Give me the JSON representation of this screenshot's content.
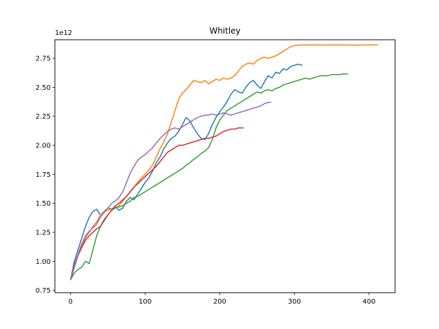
{
  "chart_data": {
    "type": "line",
    "title": "Whitley",
    "xlabel": "",
    "ylabel": "",
    "offset_text": "1e12",
    "xlim": [
      -21,
      435
    ],
    "ylim": [
      0.73,
      2.91
    ],
    "xticks": [
      0,
      100,
      200,
      300,
      400
    ],
    "xtick_labels": [
      "0",
      "100",
      "200",
      "300",
      "400"
    ],
    "yticks": [
      0.75,
      1.0,
      1.25,
      1.5,
      1.75,
      2.0,
      2.25,
      2.5,
      2.75
    ],
    "ytick_labels": [
      "0.75",
      "1.00",
      "1.25",
      "1.50",
      "1.75",
      "2.00",
      "2.25",
      "2.50",
      "2.75"
    ],
    "grid": false,
    "legend": "none",
    "series": [
      {
        "color": "#1f77b4",
        "points": [
          [
            0,
            0.84
          ],
          [
            5,
            1.0
          ],
          [
            10,
            1.1
          ],
          [
            15,
            1.2
          ],
          [
            20,
            1.3
          ],
          [
            25,
            1.38
          ],
          [
            30,
            1.43
          ],
          [
            35,
            1.45
          ],
          [
            40,
            1.4
          ],
          [
            45,
            1.43
          ],
          [
            50,
            1.46
          ],
          [
            55,
            1.45
          ],
          [
            60,
            1.47
          ],
          [
            65,
            1.44
          ],
          [
            70,
            1.46
          ],
          [
            75,
            1.52
          ],
          [
            80,
            1.55
          ],
          [
            85,
            1.53
          ],
          [
            90,
            1.58
          ],
          [
            95,
            1.63
          ],
          [
            100,
            1.68
          ],
          [
            105,
            1.72
          ],
          [
            110,
            1.78
          ],
          [
            115,
            1.85
          ],
          [
            120,
            1.9
          ],
          [
            125,
            1.97
          ],
          [
            130,
            2.02
          ],
          [
            135,
            2.06
          ],
          [
            140,
            2.08
          ],
          [
            145,
            2.12
          ],
          [
            150,
            2.18
          ],
          [
            155,
            2.24
          ],
          [
            160,
            2.21
          ],
          [
            165,
            2.15
          ],
          [
            170,
            2.1
          ],
          [
            175,
            2.06
          ],
          [
            180,
            2.05
          ],
          [
            185,
            2.1
          ],
          [
            190,
            2.18
          ],
          [
            195,
            2.24
          ],
          [
            200,
            2.29
          ],
          [
            205,
            2.33
          ],
          [
            210,
            2.38
          ],
          [
            215,
            2.44
          ],
          [
            220,
            2.48
          ],
          [
            225,
            2.46
          ],
          [
            230,
            2.45
          ],
          [
            235,
            2.5
          ],
          [
            240,
            2.54
          ],
          [
            245,
            2.56
          ],
          [
            250,
            2.52
          ],
          [
            255,
            2.49
          ],
          [
            260,
            2.55
          ],
          [
            265,
            2.6
          ],
          [
            270,
            2.58
          ],
          [
            275,
            2.63
          ],
          [
            280,
            2.62
          ],
          [
            285,
            2.66
          ],
          [
            290,
            2.65
          ],
          [
            295,
            2.68
          ],
          [
            300,
            2.69
          ],
          [
            305,
            2.7
          ],
          [
            311,
            2.69
          ]
        ]
      },
      {
        "color": "#ff7f0e",
        "points": [
          [
            0,
            0.84
          ],
          [
            5,
            0.96
          ],
          [
            10,
            1.06
          ],
          [
            15,
            1.13
          ],
          [
            20,
            1.2
          ],
          [
            25,
            1.25
          ],
          [
            30,
            1.3
          ],
          [
            35,
            1.34
          ],
          [
            40,
            1.4
          ],
          [
            45,
            1.43
          ],
          [
            50,
            1.44
          ],
          [
            55,
            1.45
          ],
          [
            60,
            1.46
          ],
          [
            65,
            1.48
          ],
          [
            70,
            1.52
          ],
          [
            75,
            1.56
          ],
          [
            80,
            1.6
          ],
          [
            85,
            1.64
          ],
          [
            90,
            1.68
          ],
          [
            95,
            1.72
          ],
          [
            100,
            1.75
          ],
          [
            105,
            1.79
          ],
          [
            110,
            1.83
          ],
          [
            115,
            1.9
          ],
          [
            120,
            1.97
          ],
          [
            125,
            2.03
          ],
          [
            130,
            2.1
          ],
          [
            135,
            2.2
          ],
          [
            140,
            2.3
          ],
          [
            145,
            2.4
          ],
          [
            150,
            2.45
          ],
          [
            155,
            2.48
          ],
          [
            160,
            2.52
          ],
          [
            165,
            2.56
          ],
          [
            170,
            2.55
          ],
          [
            175,
            2.54
          ],
          [
            180,
            2.56
          ],
          [
            185,
            2.53
          ],
          [
            190,
            2.55
          ],
          [
            195,
            2.57
          ],
          [
            200,
            2.56
          ],
          [
            205,
            2.58
          ],
          [
            210,
            2.57
          ],
          [
            215,
            2.58
          ],
          [
            220,
            2.6
          ],
          [
            225,
            2.64
          ],
          [
            230,
            2.68
          ],
          [
            235,
            2.7
          ],
          [
            240,
            2.71
          ],
          [
            245,
            2.7
          ],
          [
            250,
            2.73
          ],
          [
            255,
            2.75
          ],
          [
            260,
            2.76
          ],
          [
            265,
            2.75
          ],
          [
            270,
            2.76
          ],
          [
            275,
            2.77
          ],
          [
            280,
            2.79
          ],
          [
            285,
            2.81
          ],
          [
            290,
            2.83
          ],
          [
            295,
            2.85
          ],
          [
            300,
            2.86
          ],
          [
            310,
            2.865
          ],
          [
            320,
            2.866
          ],
          [
            340,
            2.865
          ],
          [
            360,
            2.866
          ],
          [
            380,
            2.864
          ],
          [
            400,
            2.866
          ],
          [
            412,
            2.866
          ]
        ]
      },
      {
        "color": "#2ca02c",
        "points": [
          [
            0,
            0.84
          ],
          [
            5,
            0.9
          ],
          [
            10,
            0.93
          ],
          [
            15,
            0.95
          ],
          [
            20,
            1.0
          ],
          [
            25,
            0.98
          ],
          [
            30,
            1.1
          ],
          [
            35,
            1.22
          ],
          [
            40,
            1.3
          ],
          [
            45,
            1.36
          ],
          [
            50,
            1.4
          ],
          [
            55,
            1.44
          ],
          [
            60,
            1.46
          ],
          [
            65,
            1.47
          ],
          [
            70,
            1.48
          ],
          [
            75,
            1.5
          ],
          [
            80,
            1.52
          ],
          [
            85,
            1.55
          ],
          [
            90,
            1.56
          ],
          [
            95,
            1.58
          ],
          [
            100,
            1.6
          ],
          [
            105,
            1.62
          ],
          [
            110,
            1.64
          ],
          [
            115,
            1.66
          ],
          [
            120,
            1.68
          ],
          [
            125,
            1.7
          ],
          [
            130,
            1.72
          ],
          [
            135,
            1.74
          ],
          [
            140,
            1.76
          ],
          [
            145,
            1.78
          ],
          [
            150,
            1.8
          ],
          [
            155,
            1.83
          ],
          [
            160,
            1.85
          ],
          [
            165,
            1.88
          ],
          [
            170,
            1.9
          ],
          [
            175,
            1.93
          ],
          [
            180,
            1.95
          ],
          [
            185,
            1.98
          ],
          [
            190,
            2.05
          ],
          [
            195,
            2.15
          ],
          [
            200,
            2.22
          ],
          [
            205,
            2.26
          ],
          [
            210,
            2.3
          ],
          [
            215,
            2.32
          ],
          [
            220,
            2.34
          ],
          [
            225,
            2.36
          ],
          [
            230,
            2.38
          ],
          [
            235,
            2.4
          ],
          [
            240,
            2.42
          ],
          [
            245,
            2.44
          ],
          [
            250,
            2.46
          ],
          [
            255,
            2.45
          ],
          [
            260,
            2.47
          ],
          [
            265,
            2.48
          ],
          [
            270,
            2.47
          ],
          [
            275,
            2.49
          ],
          [
            280,
            2.5
          ],
          [
            285,
            2.52
          ],
          [
            290,
            2.53
          ],
          [
            295,
            2.54
          ],
          [
            300,
            2.55
          ],
          [
            305,
            2.56
          ],
          [
            310,
            2.57
          ],
          [
            315,
            2.58
          ],
          [
            320,
            2.57
          ],
          [
            325,
            2.58
          ],
          [
            330,
            2.59
          ],
          [
            335,
            2.6
          ],
          [
            340,
            2.6
          ],
          [
            345,
            2.6
          ],
          [
            350,
            2.61
          ],
          [
            355,
            2.61
          ],
          [
            360,
            2.61
          ],
          [
            366,
            2.615
          ],
          [
            372,
            2.615
          ]
        ]
      },
      {
        "color": "#d62728",
        "points": [
          [
            0,
            0.84
          ],
          [
            5,
            0.95
          ],
          [
            10,
            1.05
          ],
          [
            15,
            1.12
          ],
          [
            20,
            1.18
          ],
          [
            25,
            1.22
          ],
          [
            30,
            1.25
          ],
          [
            35,
            1.28
          ],
          [
            40,
            1.3
          ],
          [
            45,
            1.35
          ],
          [
            50,
            1.4
          ],
          [
            55,
            1.44
          ],
          [
            60,
            1.48
          ],
          [
            65,
            1.5
          ],
          [
            70,
            1.53
          ],
          [
            75,
            1.56
          ],
          [
            80,
            1.6
          ],
          [
            85,
            1.64
          ],
          [
            90,
            1.67
          ],
          [
            95,
            1.7
          ],
          [
            100,
            1.73
          ],
          [
            105,
            1.76
          ],
          [
            110,
            1.79
          ],
          [
            115,
            1.82
          ],
          [
            120,
            1.86
          ],
          [
            125,
            1.9
          ],
          [
            130,
            1.94
          ],
          [
            135,
            1.96
          ],
          [
            140,
            1.98
          ],
          [
            145,
            2.0
          ],
          [
            150,
            2.0
          ],
          [
            155,
            2.01
          ],
          [
            160,
            2.02
          ],
          [
            165,
            2.03
          ],
          [
            170,
            2.04
          ],
          [
            175,
            2.05
          ],
          [
            180,
            2.06
          ],
          [
            185,
            2.06
          ],
          [
            190,
            2.07
          ],
          [
            195,
            2.08
          ],
          [
            200,
            2.1
          ],
          [
            205,
            2.12
          ],
          [
            210,
            2.13
          ],
          [
            215,
            2.14
          ],
          [
            220,
            2.14
          ],
          [
            225,
            2.15
          ],
          [
            232,
            2.15
          ]
        ]
      },
      {
        "color": "#9467bd",
        "points": [
          [
            0,
            0.84
          ],
          [
            5,
            0.97
          ],
          [
            10,
            1.06
          ],
          [
            15,
            1.15
          ],
          [
            20,
            1.22
          ],
          [
            25,
            1.26
          ],
          [
            30,
            1.29
          ],
          [
            35,
            1.32
          ],
          [
            40,
            1.38
          ],
          [
            45,
            1.42
          ],
          [
            50,
            1.46
          ],
          [
            55,
            1.5
          ],
          [
            60,
            1.52
          ],
          [
            65,
            1.55
          ],
          [
            70,
            1.6
          ],
          [
            75,
            1.68
          ],
          [
            80,
            1.76
          ],
          [
            85,
            1.82
          ],
          [
            90,
            1.87
          ],
          [
            95,
            1.9
          ],
          [
            100,
            1.92
          ],
          [
            105,
            1.95
          ],
          [
            110,
            1.98
          ],
          [
            115,
            2.02
          ],
          [
            120,
            2.06
          ],
          [
            125,
            2.09
          ],
          [
            130,
            2.12
          ],
          [
            135,
            2.14
          ],
          [
            140,
            2.15
          ],
          [
            145,
            2.14
          ],
          [
            150,
            2.16
          ],
          [
            155,
            2.18
          ],
          [
            160,
            2.2
          ],
          [
            165,
            2.22
          ],
          [
            170,
            2.24
          ],
          [
            175,
            2.25
          ],
          [
            180,
            2.26
          ],
          [
            185,
            2.26
          ],
          [
            190,
            2.27
          ],
          [
            195,
            2.26
          ],
          [
            200,
            2.27
          ],
          [
            205,
            2.28
          ],
          [
            210,
            2.27
          ],
          [
            215,
            2.26
          ],
          [
            220,
            2.27
          ],
          [
            225,
            2.28
          ],
          [
            230,
            2.29
          ],
          [
            235,
            2.3
          ],
          [
            240,
            2.31
          ],
          [
            245,
            2.32
          ],
          [
            250,
            2.33
          ],
          [
            255,
            2.34
          ],
          [
            260,
            2.36
          ],
          [
            265,
            2.37
          ],
          [
            269,
            2.37
          ]
        ]
      }
    ]
  }
}
